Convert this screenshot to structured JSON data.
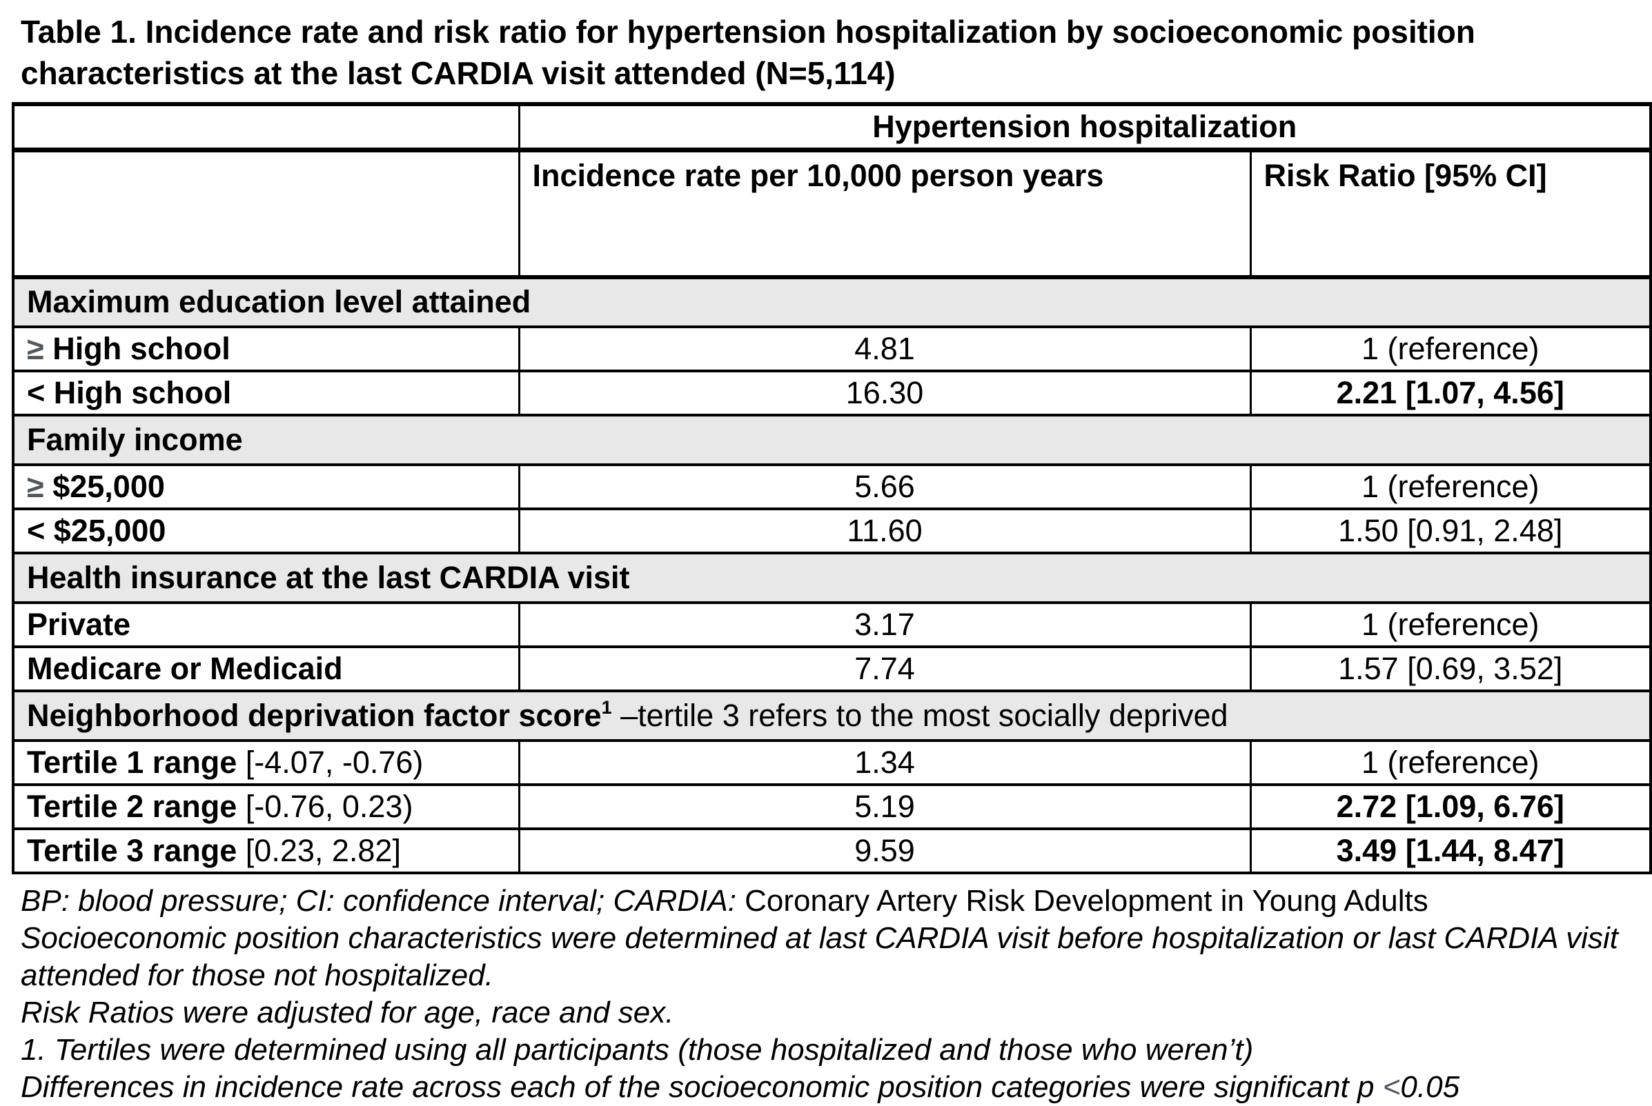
{
  "title": "Table 1. Incidence rate and risk ratio for hypertension hospitalization by socioeconomic position characteristics at the last CARDIA visit attended (N=5,114)",
  "table": {
    "span_header": "Hypertension hospitalization",
    "col_headers": {
      "incidence": "Incidence rate per 10,000 person years",
      "risk": "Risk Ratio [95% CI]"
    },
    "sections": [
      {
        "header": {
          "bold": "Maximum education level attained",
          "sup": "",
          "rest": ""
        },
        "rows": [
          {
            "sym": "≥",
            "name": " High school",
            "range": "",
            "rate": "4.81",
            "rr": "1 (reference)"
          },
          {
            "sym": "<",
            "name": " High school",
            "range": "",
            "rate": "16.30",
            "rr": "2.21 [1.07, 4.56]"
          }
        ]
      },
      {
        "header": {
          "bold": "Family income",
          "sup": "",
          "rest": ""
        },
        "rows": [
          {
            "sym": "≥",
            "name": " $25,000",
            "range": "",
            "rate": "5.66",
            "rr": "1 (reference)"
          },
          {
            "sym": "<",
            "name": " $25,000",
            "range": "",
            "rate": "11.60",
            "rr": "1.50 [0.91, 2.48]"
          }
        ]
      },
      {
        "header": {
          "bold": "Health insurance at the last CARDIA visit",
          "sup": "",
          "rest": ""
        },
        "rows": [
          {
            "sym": "",
            "name": "Private",
            "range": "",
            "rate": "3.17",
            "rr": "1 (reference)"
          },
          {
            "sym": "",
            "name": "Medicare or Medicaid",
            "range": "",
            "rate": "7.74",
            "rr": "1.57 [0.69, 3.52]"
          }
        ]
      },
      {
        "header": {
          "bold": "Neighborhood deprivation factor score",
          "sup": "1",
          "rest": " –tertile 3 refers to the most socially deprived"
        },
        "rows": [
          {
            "sym": "",
            "name": "Tertile 1 range",
            "range": " [-4.07, -0.76)",
            "rate": "1.34",
            "rr": "1 (reference)"
          },
          {
            "sym": "",
            "name": "Tertile 2 range",
            "range": " [-0.76, 0.23)",
            "rate": "5.19",
            "rr": "2.72 [1.09, 6.76]"
          },
          {
            "sym": "",
            "name": "Tertile 3 range",
            "range": " [0.23, 2.82]",
            "rate": "9.59",
            "rr": "3.49 [1.44, 8.47]"
          }
        ]
      }
    ]
  },
  "footnotes": {
    "line1_italic": "BP: blood pressure; CI: confidence interval; CARDIA: ",
    "line1_upright": "Coronary Artery Risk Development in Young Adults",
    "line2": "Socioeconomic position characteristics were determined at last CARDIA visit before hospitalization or last CARDIA visit attended for those not hospitalized.",
    "line3": "Risk Ratios were adjusted for age, race and sex.",
    "line4": "1. Tertiles were determined using all participants (those hospitalized and those who weren’t)",
    "line5_pre": "Differences in incidence rate across each of the socioeconomic position categories were significant p ",
    "line5_lt": "<",
    "line5_post": "0.05"
  },
  "colors": {
    "section_row_bg": "#e8e8e8",
    "border": "#000000",
    "comparison_symbol_gray": "#54575c"
  }
}
